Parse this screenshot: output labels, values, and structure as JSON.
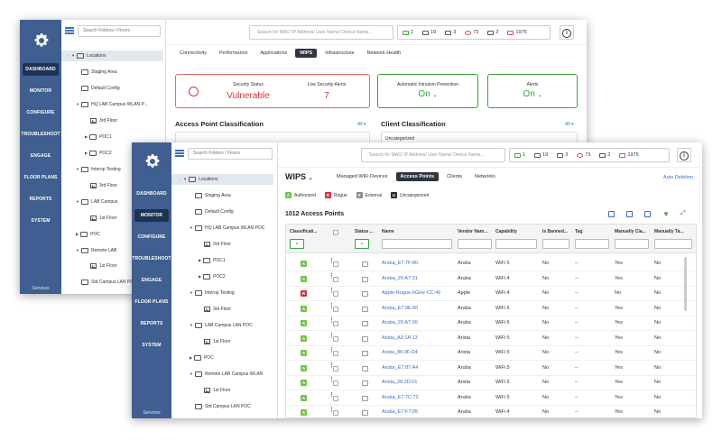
{
  "sidebar": {
    "items": [
      "DASHBOARD",
      "MONITOR",
      "CONFIGURE",
      "TROUBLESHOOT",
      "ENGAGE",
      "FLOOR PLANS",
      "REPORTS",
      "SYSTEM"
    ],
    "footer": "Services"
  },
  "tree": {
    "search_placeholder": "Search Folders / Floors",
    "nodes": [
      "Locations",
      "Staging Area",
      "Default Config",
      "HQ LAB Campus WLAN POC",
      "3rd Floor",
      "POC1",
      "POC2",
      "Interop Testing",
      "3rd Floor",
      "LAB Campus LAN POC",
      "1st Floor",
      "POC",
      "Remote LAB Campus WLAN",
      "1st Floor",
      "Std Campus LAN POC"
    ]
  },
  "tree_back": {
    "nodes": [
      "Locations",
      "Staging Area",
      "Default Config",
      "HQ LAB Campus WLAN P...",
      "3rd Floor",
      "POC1",
      "POC2",
      "Interop Testing",
      "3rd Floor",
      "LAB Campus",
      "1st Floor",
      "POC",
      "Remote LAB",
      "1st Floor",
      "Std Campus LAN POC"
    ]
  },
  "header": {
    "search_placeholder": "Search for MAC/ IP Address/ User Name/ Device Name...",
    "stats": [
      {
        "icon": "access-point-icon",
        "value": "1",
        "color": "#3aa53a"
      },
      {
        "icon": "switch-icon",
        "value": "19",
        "color": "#555555"
      },
      {
        "icon": "server-icon",
        "value": "3",
        "color": "#555555"
      },
      {
        "icon": "shield-icon",
        "value": "73",
        "color": "#d9534f"
      },
      {
        "icon": "link-icon",
        "value": "2",
        "color": "#555555"
      },
      {
        "icon": "warning-icon",
        "value": "1975",
        "color": "#d9534f"
      }
    ],
    "info": "i"
  },
  "back_window": {
    "tabs": [
      "Connectivity",
      "Performance",
      "Applications",
      "WIPS",
      "Infrastructure",
      "Network Health"
    ],
    "active_tab": "WIPS",
    "security_status_label": "Security Status",
    "security_status_value": "Vulnerable",
    "live_alerts_label": "Live Security Alerts",
    "live_alerts_value": "7",
    "auto_prevention_label": "Automatic Intrusion Prevention",
    "auto_prevention_value": "On",
    "alerts_label": "Alerts",
    "alerts_value": "On",
    "ap_classification_title": "Access Point Classification",
    "client_classification_title": "Client Classification",
    "all_label": "All",
    "uncategorized_label": "Uncategorized"
  },
  "front_window": {
    "title": "WIPS",
    "tabs": [
      "Managed WiFi Devices",
      "Access Points",
      "Clients",
      "Networks"
    ],
    "active_tab": "Access Points",
    "auto_deletion": "Auto Deletion",
    "legend": [
      {
        "letter": "A",
        "label": "Authorized",
        "color": "#7ac143"
      },
      {
        "letter": "R",
        "label": "Rogue",
        "color": "#d9303a"
      },
      {
        "letter": "E",
        "label": "External",
        "color": "#8a8a8a"
      },
      {
        "letter": "U",
        "label": "Uncategorized",
        "color": "#2b2b2b"
      }
    ],
    "count_label": "1012 Access Points",
    "columns": [
      "Classificati...",
      "",
      "",
      "Status ...",
      "Name",
      "Vendor Nam...",
      "Capability",
      "Is Banned...",
      "Tag",
      "Manually Cla...",
      "Manually Ta..."
    ],
    "rows": [
      {
        "class": "A",
        "name": "Aruba_E7:7F:80",
        "vendor": "Aruba",
        "cap": "WiFi 5",
        "banned": "No",
        "tag": "--",
        "mc": "Yes",
        "mt": "No"
      },
      {
        "class": "A",
        "name": "Aruba_20:A7:31",
        "vendor": "Aruba",
        "cap": "WiFi 4",
        "banned": "No",
        "tag": "--",
        "mc": "Yes",
        "mt": "No"
      },
      {
        "class": "R",
        "name": "Apple-Rogue-5GHz-CC:4F",
        "vendor": "Apple",
        "cap": "WiFi 4",
        "banned": "No",
        "tag": "--",
        "mc": "No",
        "mt": "No"
      },
      {
        "class": "A",
        "name": "Aruba_E7:9E:60",
        "vendor": "Aruba",
        "cap": "WiFi 5",
        "banned": "No",
        "tag": "--",
        "mc": "Yes",
        "mt": "No"
      },
      {
        "class": "A",
        "name": "Aruba_20:A7:30",
        "vendor": "Aruba",
        "cap": "WiFi 6",
        "banned": "No",
        "tag": "--",
        "mc": "Yes",
        "mt": "No"
      },
      {
        "class": "A",
        "name": "Arista_A3:1A:13",
        "vendor": "Arista",
        "cap": "WiFi 5",
        "banned": "No",
        "tag": "--",
        "mc": "Yes",
        "mt": "No"
      },
      {
        "class": "A",
        "name": "Arista_86:0F:D4",
        "vendor": "Arista",
        "cap": "WiFi 5",
        "banned": "No",
        "tag": "--",
        "mc": "Yes",
        "mt": "No"
      },
      {
        "class": "A",
        "name": "Aruba_E7:87:A4",
        "vendor": "Aruba",
        "cap": "WiFi 5",
        "banned": "No",
        "tag": "--",
        "mc": "Yes",
        "mt": "No"
      },
      {
        "class": "A",
        "name": "Arista_28:2D:01",
        "vendor": "Arista",
        "cap": "WiFi 5",
        "banned": "No",
        "tag": "--",
        "mc": "Yes",
        "mt": "No"
      },
      {
        "class": "A",
        "name": "Aruba_E7:7C:72",
        "vendor": "Aruba",
        "cap": "WiFi 5",
        "banned": "No",
        "tag": "--",
        "mc": "Yes",
        "mt": "No"
      },
      {
        "class": "A",
        "name": "Aruba_E7:F7:05",
        "vendor": "Aruba",
        "cap": "WiFi 4",
        "banned": "No",
        "tag": "--",
        "mc": "Yes",
        "mt": "No"
      }
    ]
  },
  "colors": {
    "sidebar": "#3e5f8f",
    "accent": "#3b6fc2",
    "danger": "#d9303a",
    "ok": "#3aa53a"
  }
}
